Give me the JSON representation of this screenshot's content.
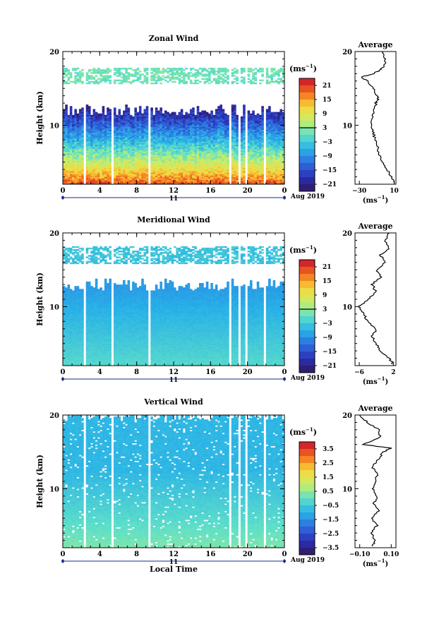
{
  "figure": {
    "date_label": "Aug 2019",
    "day_label": "11",
    "xlabel": "Local Time"
  },
  "chart_data": [
    {
      "type": "heatmap",
      "title": "Zonal Wind",
      "ylabel": "Height (km)",
      "xlabel": "",
      "x_ticks": [
        "0",
        "4",
        "8",
        "12",
        "16",
        "20",
        "0"
      ],
      "y_ticks": [
        "10",
        "20"
      ],
      "xlim": [
        0,
        24
      ],
      "ylim": [
        2,
        20
      ],
      "colorbar": {
        "unit": "(ms",
        "unit_exp": "−1",
        "tick_labels": [
          "21",
          "15",
          "9",
          "3",
          "−3",
          "−9",
          "−15",
          "−21"
        ],
        "range": [
          -24,
          24
        ],
        "marker": 3
      },
      "field": {
        "zero_height": 7.5,
        "min": -20,
        "max": 20,
        "upper_cut": 12,
        "band": [
          15.6,
          17.8
        ]
      },
      "average": {
        "title": "Average",
        "xlabel": "(ms",
        "xlabel_exp": "−1",
        "x_ticks": [
          "−30",
          "10"
        ],
        "y_ticks": [
          "10",
          "20"
        ],
        "xlim": [
          -35,
          12
        ],
        "profile": [
          {
            "h": 2.2,
            "v": 10
          },
          {
            "h": 3,
            "v": 7
          },
          {
            "h": 4,
            "v": 2
          },
          {
            "h": 5,
            "v": -3
          },
          {
            "h": 6,
            "v": -7
          },
          {
            "h": 7,
            "v": -9
          },
          {
            "h": 8,
            "v": -12
          },
          {
            "h": 9,
            "v": -14
          },
          {
            "h": 10,
            "v": -16
          },
          {
            "h": 11,
            "v": -15
          },
          {
            "h": 12,
            "v": -13
          },
          {
            "h": 13,
            "v": -11
          },
          {
            "h": 13.5,
            "v": -8
          },
          {
            "h": 14,
            "v": -10
          },
          {
            "h": 15,
            "v": -14
          },
          {
            "h": 16,
            "v": -20
          },
          {
            "h": 16.5,
            "v": -28
          },
          {
            "h": 17,
            "v": -14
          },
          {
            "h": 17.5,
            "v": -6
          },
          {
            "h": 18,
            "v": -2
          },
          {
            "h": 19,
            "v": 0
          },
          {
            "h": 20,
            "v": -3
          }
        ]
      }
    },
    {
      "type": "heatmap",
      "title": "Meridional Wind",
      "ylabel": "Height (km)",
      "xlabel": "",
      "x_ticks": [
        "0",
        "4",
        "8",
        "12",
        "16",
        "20",
        "0"
      ],
      "y_ticks": [
        "10",
        "20"
      ],
      "xlim": [
        0,
        24
      ],
      "ylim": [
        2,
        20
      ],
      "colorbar": {
        "unit": "(ms",
        "unit_exp": "−1",
        "tick_labels": [
          "21",
          "15",
          "9",
          "3",
          "−3",
          "−9",
          "−15",
          "−21"
        ],
        "range": [
          -24,
          24
        ],
        "marker": 3
      },
      "field": {
        "zero_height": 99,
        "min": -8,
        "max": -1,
        "upper_cut": 13,
        "band": [
          15.8,
          18.2
        ]
      },
      "average": {
        "title": "Average",
        "xlabel": "(ms",
        "xlabel_exp": "−1",
        "x_ticks": [
          "−6",
          "2"
        ],
        "y_ticks": [
          "10",
          "20"
        ],
        "xlim": [
          -7,
          2.6
        ],
        "profile": [
          {
            "h": 2.2,
            "v": 2
          },
          {
            "h": 3,
            "v": 1
          },
          {
            "h": 4,
            "v": -1
          },
          {
            "h": 5,
            "v": -2
          },
          {
            "h": 6,
            "v": -3
          },
          {
            "h": 7,
            "v": -2
          },
          {
            "h": 8,
            "v": -4
          },
          {
            "h": 9,
            "v": -5
          },
          {
            "h": 10,
            "v": -6
          },
          {
            "h": 11,
            "v": -4
          },
          {
            "h": 12,
            "v": -2
          },
          {
            "h": 13,
            "v": -3
          },
          {
            "h": 14,
            "v": -1
          },
          {
            "h": 15,
            "v": -2
          },
          {
            "h": 16,
            "v": 0
          },
          {
            "h": 17,
            "v": -1
          },
          {
            "h": 18,
            "v": 1
          },
          {
            "h": 19,
            "v": 0
          },
          {
            "h": 20,
            "v": 1
          }
        ]
      }
    },
    {
      "type": "heatmap",
      "title": "Vertical Wind",
      "ylabel": "Height (km)",
      "xlabel": "Local Time",
      "x_ticks": [
        "0",
        "4",
        "8",
        "12",
        "16",
        "20",
        "0"
      ],
      "y_ticks": [
        "10",
        "20"
      ],
      "xlim": [
        0,
        24
      ],
      "ylim": [
        2,
        20
      ],
      "colorbar": {
        "unit": "(ms",
        "unit_exp": "−1",
        "tick_labels": [
          "3.5",
          "2.5",
          "1.5",
          "0.5",
          "−0.5",
          "−1.5",
          "−2.5",
          "−3.5"
        ],
        "range": [
          -4,
          4
        ],
        "marker": null
      },
      "field": {
        "zero_height": 99,
        "min": -0.9,
        "max": 0.3,
        "upper_cut": 20,
        "band": null
      },
      "average": {
        "title": "Average",
        "xlabel": "(ms",
        "xlabel_exp": "−1",
        "x_ticks": [
          "−0.10",
          "0.10"
        ],
        "y_ticks": [
          "10",
          "20"
        ],
        "xlim": [
          -0.13,
          0.13
        ],
        "profile": [
          {
            "h": 2.2,
            "v": -0.02
          },
          {
            "h": 3,
            "v": 0.0
          },
          {
            "h": 4,
            "v": -0.03
          },
          {
            "h": 5,
            "v": 0.01
          },
          {
            "h": 6,
            "v": -0.02
          },
          {
            "h": 7,
            "v": 0.02
          },
          {
            "h": 8,
            "v": -0.01
          },
          {
            "h": 9,
            "v": 0.01
          },
          {
            "h": 10,
            "v": -0.02
          },
          {
            "h": 11,
            "v": 0.0
          },
          {
            "h": 12,
            "v": 0.01
          },
          {
            "h": 13,
            "v": -0.02
          },
          {
            "h": 14,
            "v": 0.02
          },
          {
            "h": 15,
            "v": 0.05
          },
          {
            "h": 15.5,
            "v": 0.1
          },
          {
            "h": 16,
            "v": -0.08
          },
          {
            "h": 17,
            "v": 0.03
          },
          {
            "h": 18,
            "v": 0.02
          },
          {
            "h": 19,
            "v": -0.05
          },
          {
            "h": 20,
            "v": -0.1
          }
        ]
      }
    }
  ],
  "data_gaps_lt": [
    2.2,
    2.5,
    4.4,
    4.6,
    5.3,
    5.5,
    9.3,
    9.5,
    18.0,
    18.2,
    18.9,
    19.2,
    19.8,
    20.0,
    21.8,
    22.0
  ]
}
